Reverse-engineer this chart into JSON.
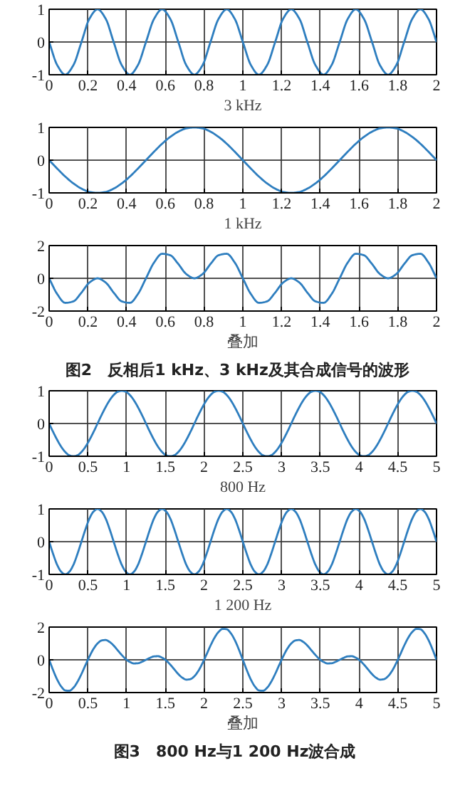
{
  "chart_data": [
    {
      "type": "line",
      "xlabel": "3 kHz",
      "xlim": [
        0,
        2
      ],
      "ylim": [
        -1,
        1
      ],
      "xticks": [
        0,
        0.2,
        0.4,
        0.6,
        0.8,
        1,
        1.2,
        1.4,
        1.6,
        1.8,
        2
      ],
      "yticks": [
        -1,
        0,
        1
      ],
      "grid": true,
      "x": [
        0,
        0.042,
        0.083,
        0.125,
        0.167,
        0.208,
        0.25,
        0.292,
        0.333,
        0.375,
        0.417,
        0.458,
        0.5,
        0.542,
        0.583,
        0.625,
        0.667,
        0.708,
        0.75,
        0.792,
        0.833,
        0.875,
        0.917,
        0.958,
        1,
        1.042,
        1.083,
        1.125,
        1.167,
        1.208,
        1.25,
        1.292,
        1.333,
        1.375,
        1.417,
        1.458,
        1.5,
        1.542,
        1.583,
        1.625,
        1.667,
        1.708,
        1.75,
        1.792,
        1.833,
        1.875,
        1.917,
        1.958,
        2
      ],
      "series": [
        {
          "color": "#2e7ebf",
          "values": [
            0,
            -0.71,
            -1,
            -0.71,
            0,
            0.71,
            1,
            0.71,
            0,
            -0.71,
            -1,
            -0.71,
            0,
            0.71,
            1,
            0.71,
            0,
            -0.71,
            -1,
            -0.71,
            0,
            0.71,
            1,
            0.71,
            0,
            -0.71,
            -1,
            -0.71,
            0,
            0.71,
            1,
            0.71,
            0,
            -0.71,
            -1,
            -0.71,
            0,
            0.71,
            1,
            0.71,
            0,
            -0.71,
            -1,
            -0.71,
            0,
            0.71,
            1,
            0.71,
            0
          ]
        }
      ]
    },
    {
      "type": "line",
      "xlabel": "1 kHz",
      "xlim": [
        0,
        2
      ],
      "ylim": [
        -1,
        1
      ],
      "xticks": [
        0,
        0.2,
        0.4,
        0.6,
        0.8,
        1,
        1.2,
        1.4,
        1.6,
        1.8,
        2
      ],
      "yticks": [
        -1,
        0,
        1
      ],
      "grid": true,
      "x": [
        0,
        0.042,
        0.083,
        0.125,
        0.167,
        0.208,
        0.25,
        0.292,
        0.333,
        0.375,
        0.417,
        0.458,
        0.5,
        0.542,
        0.583,
        0.625,
        0.667,
        0.708,
        0.75,
        0.792,
        0.833,
        0.875,
        0.917,
        0.958,
        1,
        1.042,
        1.083,
        1.125,
        1.167,
        1.208,
        1.25,
        1.292,
        1.333,
        1.375,
        1.417,
        1.458,
        1.5,
        1.542,
        1.583,
        1.625,
        1.667,
        1.708,
        1.75,
        1.792,
        1.833,
        1.875,
        1.917,
        1.958,
        2
      ],
      "series": [
        {
          "color": "#2e7ebf",
          "values": [
            0,
            -0.26,
            -0.5,
            -0.71,
            -0.87,
            -0.97,
            -1,
            -0.97,
            -0.87,
            -0.71,
            -0.5,
            -0.26,
            0,
            0.26,
            0.5,
            0.71,
            0.87,
            0.97,
            1,
            0.97,
            0.87,
            0.71,
            0.5,
            0.26,
            0,
            -0.26,
            -0.5,
            -0.71,
            -0.87,
            -0.97,
            -1,
            -0.97,
            -0.87,
            -0.71,
            -0.5,
            -0.26,
            0,
            0.26,
            0.5,
            0.71,
            0.87,
            0.97,
            1,
            0.97,
            0.87,
            0.71,
            0.5,
            0.26,
            0
          ]
        }
      ]
    },
    {
      "type": "line",
      "xlabel": "叠加",
      "xlim": [
        0,
        2
      ],
      "ylim": [
        -2,
        2
      ],
      "xticks": [
        0,
        0.2,
        0.4,
        0.6,
        0.8,
        1,
        1.2,
        1.4,
        1.6,
        1.8,
        2
      ],
      "yticks": [
        -2,
        0,
        2
      ],
      "grid": true,
      "annotations": [
        "图2　反相后1  kHz、3  kHz及其合成信号的波形"
      ],
      "x": [
        0,
        0.042,
        0.083,
        0.125,
        0.167,
        0.208,
        0.25,
        0.292,
        0.333,
        0.375,
        0.417,
        0.458,
        0.5,
        0.542,
        0.583,
        0.625,
        0.667,
        0.708,
        0.75,
        0.792,
        0.833,
        0.875,
        0.917,
        0.958,
        1,
        1.042,
        1.083,
        1.125,
        1.167,
        1.208,
        1.25,
        1.292,
        1.333,
        1.375,
        1.417,
        1.458,
        1.5,
        1.542,
        1.583,
        1.625,
        1.667,
        1.708,
        1.75,
        1.792,
        1.833,
        1.875,
        1.917,
        1.958,
        2
      ],
      "series": [
        {
          "color": "#2e7ebf",
          "values": [
            0,
            -0.97,
            -1.5,
            -1.41,
            -0.87,
            -0.26,
            0,
            -0.26,
            -0.87,
            -1.41,
            -1.5,
            -0.97,
            0,
            0.97,
            1.5,
            1.41,
            0.87,
            0.26,
            0,
            0.26,
            0.87,
            1.41,
            1.5,
            0.97,
            0,
            -0.97,
            -1.5,
            -1.41,
            -0.87,
            -0.26,
            0,
            -0.26,
            -0.87,
            -1.41,
            -1.5,
            -0.97,
            0,
            0.97,
            1.5,
            1.41,
            0.87,
            0.26,
            0,
            0.26,
            0.87,
            1.41,
            1.5,
            0.97,
            0
          ]
        }
      ]
    },
    {
      "type": "line",
      "xlabel": "800 Hz",
      "xlim": [
        0,
        5
      ],
      "ylim": [
        -1,
        1
      ],
      "xticks": [
        0,
        0.5,
        1,
        1.5,
        2,
        2.5,
        3,
        3.5,
        4,
        4.5,
        5
      ],
      "yticks": [
        -1,
        0,
        1
      ],
      "grid": true,
      "x": [
        0,
        0.052,
        0.104,
        0.156,
        0.208,
        0.26,
        0.313,
        0.365,
        0.417,
        0.469,
        0.521,
        0.573,
        0.625,
        0.677,
        0.729,
        0.781,
        0.833,
        0.885,
        0.938,
        0.99,
        1.042,
        1.094,
        1.146,
        1.198,
        1.25,
        1.302,
        1.354,
        1.406,
        1.458,
        1.51,
        1.563,
        1.615,
        1.667,
        1.719,
        1.771,
        1.823,
        1.875,
        1.927,
        1.979,
        2.031,
        2.083,
        2.135,
        2.188,
        2.24,
        2.292,
        2.344,
        2.396,
        2.448,
        2.5,
        2.552,
        2.604,
        2.656,
        2.708,
        2.76,
        2.813,
        2.865,
        2.917,
        2.969,
        3.021,
        3.073,
        3.125,
        3.177,
        3.229,
        3.281,
        3.333,
        3.385,
        3.438,
        3.49,
        3.542,
        3.594,
        3.646,
        3.698,
        3.75,
        3.802,
        3.854,
        3.906,
        3.958,
        4.01,
        4.063,
        4.115,
        4.167,
        4.219,
        4.271,
        4.323,
        4.375,
        4.427,
        4.479,
        4.531,
        4.583,
        4.635,
        4.688,
        4.74,
        4.792,
        4.844,
        4.896,
        4.948,
        5
      ],
      "series": [
        {
          "color": "#2e7ebf",
          "values": [
            0,
            -0.26,
            -0.5,
            -0.71,
            -0.87,
            -0.97,
            -1,
            -0.97,
            -0.87,
            -0.71,
            -0.5,
            -0.26,
            0,
            0.26,
            0.5,
            0.71,
            0.87,
            0.97,
            1,
            0.97,
            0.87,
            0.71,
            0.5,
            0.26,
            0,
            -0.26,
            -0.5,
            -0.71,
            -0.87,
            -0.97,
            -1,
            -0.97,
            -0.87,
            -0.71,
            -0.5,
            -0.26,
            0,
            0.26,
            0.5,
            0.71,
            0.87,
            0.97,
            1,
            0.97,
            0.87,
            0.71,
            0.5,
            0.26,
            0,
            -0.26,
            -0.5,
            -0.71,
            -0.87,
            -0.97,
            -1,
            -0.97,
            -0.87,
            -0.71,
            -0.5,
            -0.26,
            0,
            0.26,
            0.5,
            0.71,
            0.87,
            0.97,
            1,
            0.97,
            0.87,
            0.71,
            0.5,
            0.26,
            0,
            -0.26,
            -0.5,
            -0.71,
            -0.87,
            -0.97,
            -1,
            -0.97,
            -0.87,
            -0.71,
            -0.5,
            -0.26,
            0,
            0.26,
            0.5,
            0.71,
            0.87,
            0.97,
            1,
            0.97,
            0.87,
            0.71,
            0.5,
            0.26,
            0
          ]
        }
      ]
    },
    {
      "type": "line",
      "xlabel": "1 200 Hz",
      "xlim": [
        0,
        5
      ],
      "ylim": [
        -1,
        1
      ],
      "xticks": [
        0,
        0.5,
        1,
        1.5,
        2,
        2.5,
        3,
        3.5,
        4,
        4.5,
        5
      ],
      "yticks": [
        -1,
        0,
        1
      ],
      "grid": true,
      "x": [
        0,
        0.052,
        0.104,
        0.156,
        0.208,
        0.26,
        0.313,
        0.365,
        0.417,
        0.469,
        0.521,
        0.573,
        0.625,
        0.677,
        0.729,
        0.781,
        0.833,
        0.885,
        0.938,
        0.99,
        1.042,
        1.094,
        1.146,
        1.198,
        1.25,
        1.302,
        1.354,
        1.406,
        1.458,
        1.51,
        1.563,
        1.615,
        1.667,
        1.719,
        1.771,
        1.823,
        1.875,
        1.927,
        1.979,
        2.031,
        2.083,
        2.135,
        2.188,
        2.24,
        2.292,
        2.344,
        2.396,
        2.448,
        2.5,
        2.552,
        2.604,
        2.656,
        2.708,
        2.76,
        2.813,
        2.865,
        2.917,
        2.969,
        3.021,
        3.073,
        3.125,
        3.177,
        3.229,
        3.281,
        3.333,
        3.385,
        3.438,
        3.49,
        3.542,
        3.594,
        3.646,
        3.698,
        3.75,
        3.802,
        3.854,
        3.906,
        3.958,
        4.01,
        4.063,
        4.115,
        4.167,
        4.219,
        4.271,
        4.323,
        4.375,
        4.427,
        4.479,
        4.531,
        4.583,
        4.635,
        4.688,
        4.74,
        4.792,
        4.844,
        4.896,
        4.948,
        5
      ],
      "series": [
        {
          "color": "#2e7ebf",
          "values": [
            0,
            -0.38,
            -0.71,
            -0.92,
            -1,
            -0.92,
            -0.71,
            -0.38,
            0,
            0.38,
            0.71,
            0.92,
            1,
            0.92,
            0.71,
            0.38,
            0,
            -0.38,
            -0.71,
            -0.92,
            -1,
            -0.92,
            -0.71,
            -0.38,
            0,
            0.38,
            0.71,
            0.92,
            1,
            0.92,
            0.71,
            0.38,
            0,
            -0.38,
            -0.71,
            -0.92,
            -1,
            -0.92,
            -0.71,
            -0.38,
            0,
            0.38,
            0.71,
            0.92,
            1,
            0.92,
            0.71,
            0.38,
            0,
            -0.38,
            -0.71,
            -0.92,
            -1,
            -0.92,
            -0.71,
            -0.38,
            0,
            0.38,
            0.71,
            0.92,
            1,
            0.92,
            0.71,
            0.38,
            0,
            -0.38,
            -0.71,
            -0.92,
            -1,
            -0.92,
            -0.71,
            -0.38,
            0,
            0.38,
            0.71,
            0.92,
            1,
            0.92,
            0.71,
            0.38,
            0,
            -0.38,
            -0.71,
            -0.92,
            -1,
            -0.92,
            -0.71,
            -0.38,
            0,
            0.38,
            0.71,
            0.92,
            1,
            0.92,
            0.71,
            0.38,
            0
          ]
        }
      ]
    },
    {
      "type": "line",
      "xlabel": "叠加",
      "xlim": [
        0,
        5
      ],
      "ylim": [
        -2,
        2
      ],
      "xticks": [
        0,
        0.5,
        1,
        1.5,
        2,
        2.5,
        3,
        3.5,
        4,
        4.5,
        5
      ],
      "yticks": [
        -2,
        0,
        2
      ],
      "grid": true,
      "annotations": [
        "图3　800  Hz与1  200  Hz波合成"
      ],
      "x": [
        0,
        0.052,
        0.104,
        0.156,
        0.208,
        0.26,
        0.313,
        0.365,
        0.417,
        0.469,
        0.521,
        0.573,
        0.625,
        0.677,
        0.729,
        0.781,
        0.833,
        0.885,
        0.938,
        0.99,
        1.042,
        1.094,
        1.146,
        1.198,
        1.25,
        1.302,
        1.354,
        1.406,
        1.458,
        1.51,
        1.563,
        1.615,
        1.667,
        1.719,
        1.771,
        1.823,
        1.875,
        1.927,
        1.979,
        2.031,
        2.083,
        2.135,
        2.188,
        2.24,
        2.292,
        2.344,
        2.396,
        2.448,
        2.5,
        2.552,
        2.604,
        2.656,
        2.708,
        2.76,
        2.813,
        2.865,
        2.917,
        2.969,
        3.021,
        3.073,
        3.125,
        3.177,
        3.229,
        3.281,
        3.333,
        3.385,
        3.438,
        3.49,
        3.542,
        3.594,
        3.646,
        3.698,
        3.75,
        3.802,
        3.854,
        3.906,
        3.958,
        4.01,
        4.063,
        4.115,
        4.167,
        4.219,
        4.271,
        4.323,
        4.375,
        4.427,
        4.479,
        4.531,
        4.583,
        4.635,
        4.688,
        4.74,
        4.792,
        4.844,
        4.896,
        4.948,
        5
      ],
      "series": [
        {
          "color": "#2e7ebf",
          "values": [
            0,
            -0.64,
            -1.21,
            -1.63,
            -1.87,
            -1.89,
            -1.71,
            -1.35,
            -0.87,
            -0.32,
            0.21,
            0.67,
            1,
            1.18,
            1.21,
            1.09,
            0.87,
            0.58,
            0.29,
            0.04,
            -0.13,
            -0.22,
            -0.21,
            -0.12,
            0,
            0.12,
            0.21,
            0.22,
            0.13,
            -0.04,
            -0.29,
            -0.58,
            -0.87,
            -1.09,
            -1.21,
            -1.18,
            -1,
            -0.67,
            -0.21,
            0.32,
            0.87,
            1.35,
            1.71,
            1.89,
            1.87,
            1.63,
            1.21,
            0.64,
            0,
            -0.64,
            -1.21,
            -1.63,
            -1.87,
            -1.89,
            -1.71,
            -1.35,
            -0.87,
            -0.32,
            0.21,
            0.67,
            1,
            1.18,
            1.21,
            1.09,
            0.87,
            0.58,
            0.29,
            0.04,
            -0.13,
            -0.22,
            -0.21,
            -0.12,
            0,
            0.12,
            0.21,
            0.22,
            0.13,
            -0.04,
            -0.29,
            -0.58,
            -0.87,
            -1.09,
            -1.21,
            -1.18,
            -1,
            -0.67,
            -0.21,
            0.32,
            0.87,
            1.35,
            1.71,
            1.89,
            1.87,
            1.63,
            1.21,
            0.64,
            0
          ]
        }
      ]
    }
  ]
}
